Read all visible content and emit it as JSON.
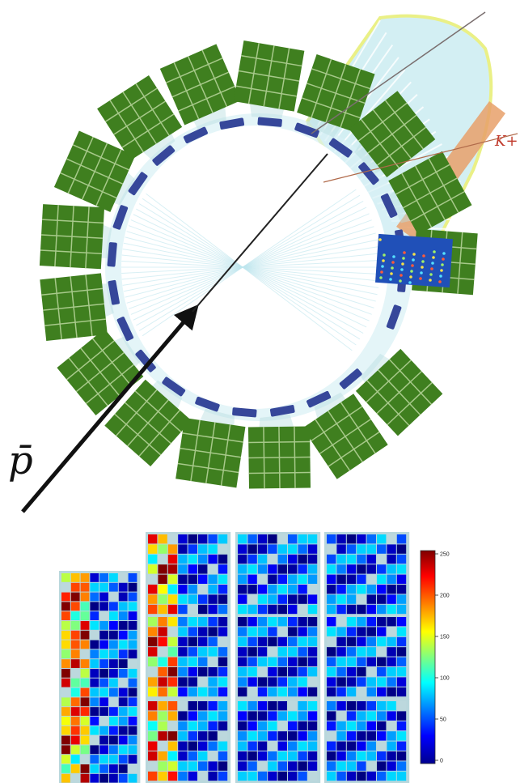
{
  "diagram": {
    "beam_label": "p̄",
    "kaon_label": "K+",
    "colors": {
      "module_green": "#3f7f1f",
      "module_grid": "#a7c98a",
      "straw_blue": "#36479a",
      "light_cyan": "#cfeef2",
      "cone_edge": "#e8ef7a",
      "kaon_band": "#e8a06a",
      "track_line": "#7a3f3f"
    }
  },
  "heatmap": {
    "colorbar_ticks": [
      "250",
      "200",
      "150",
      "100",
      "50",
      "0"
    ],
    "colorbar_range": [
      0,
      250
    ]
  }
}
